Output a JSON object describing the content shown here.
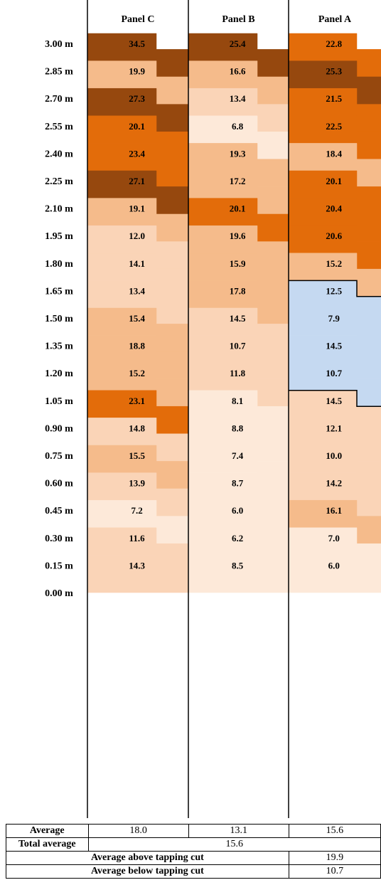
{
  "colors": {
    "dark": "#96480e",
    "orange": "#e36c0a",
    "tan": "#f5bb8b",
    "light": "#fad4b7",
    "pale": "#fde9d9",
    "blue": "#c5d9f1"
  },
  "chart_data": {
    "type": "heatmap",
    "columns": [
      "Panel C",
      "Panel B",
      "Panel A"
    ],
    "depth_labels": [
      "3.00 m",
      "2.85 m",
      "2.70 m",
      "2.55 m",
      "2.40 m",
      "2.25 m",
      "2.10 m",
      "1.95 m",
      "1.80 m",
      "1.65 m",
      "1.50 m",
      "1.35 m",
      "1.20 m",
      "1.05 m",
      "0.90 m",
      "0.75 m",
      "0.60 m",
      "0.45 m",
      "0.30 m",
      "0.15 m",
      "0.00 m"
    ],
    "depths": [
      2.925,
      2.775,
      2.625,
      2.475,
      2.325,
      2.175,
      2.025,
      1.875,
      1.725,
      1.575,
      1.425,
      1.275,
      1.125,
      0.975,
      0.825,
      0.675,
      0.525,
      0.375,
      0.225,
      0.075
    ],
    "values": {
      "Panel C": [
        34.5,
        19.9,
        27.3,
        20.1,
        23.4,
        27.1,
        19.1,
        12.0,
        14.1,
        13.4,
        15.4,
        18.8,
        15.2,
        23.1,
        14.8,
        15.5,
        13.9,
        7.2,
        11.6,
        14.3
      ],
      "Panel B": [
        25.4,
        16.6,
        13.4,
        6.8,
        19.3,
        17.2,
        20.1,
        19.6,
        15.9,
        17.8,
        14.5,
        10.7,
        11.8,
        8.1,
        8.8,
        7.4,
        8.7,
        6.0,
        6.2,
        8.5
      ],
      "Panel A": [
        22.8,
        25.3,
        21.5,
        22.5,
        18.4,
        20.1,
        20.4,
        20.6,
        15.2,
        12.5,
        7.9,
        14.5,
        10.7,
        14.5,
        12.1,
        10.0,
        14.2,
        16.1,
        7.0,
        6.0
      ]
    },
    "value_labels": {
      "Panel C": [
        "34.5",
        "19.9",
        "27.3",
        "20.1",
        "23.4",
        "27.1",
        "19.1",
        "12.0",
        "14.1",
        "13.4",
        "15.4",
        "18.8",
        "15.2",
        "23.1",
        "14.8",
        "15.5",
        "13.9",
        "7.2",
        "11.6",
        "14.3"
      ],
      "Panel B": [
        "25.4",
        "16.6",
        "13.4",
        "6.8",
        "19.3",
        "17.2",
        "20.1",
        "19.6",
        "15.9",
        "17.8",
        "14.5",
        "10.7",
        "11.8",
        "8.1",
        "8.8",
        "7.4",
        "8.7",
        "6.0",
        "6.2",
        "8.5"
      ],
      "Panel A": [
        "22.8",
        "25.3",
        "21.5",
        "22.5",
        "18.4",
        "20.1",
        "20.4",
        "20.6",
        "15.2",
        "12.5",
        "7.9",
        "14.5",
        "10.7",
        "14.5",
        "12.1",
        "10.0",
        "14.2",
        "16.1",
        "7.0",
        "6.0"
      ]
    },
    "tapping_cut": [
      1.65,
      1.05
    ],
    "summary": {
      "average_label": "Average",
      "averages": [
        "18.0",
        "13.1",
        "15.6"
      ],
      "total_label": "Total average",
      "total": "15.6",
      "above_label": "Average above tapping cut",
      "above": "19.9",
      "below_label": "Average below tapping cut",
      "below": "10.7"
    }
  }
}
